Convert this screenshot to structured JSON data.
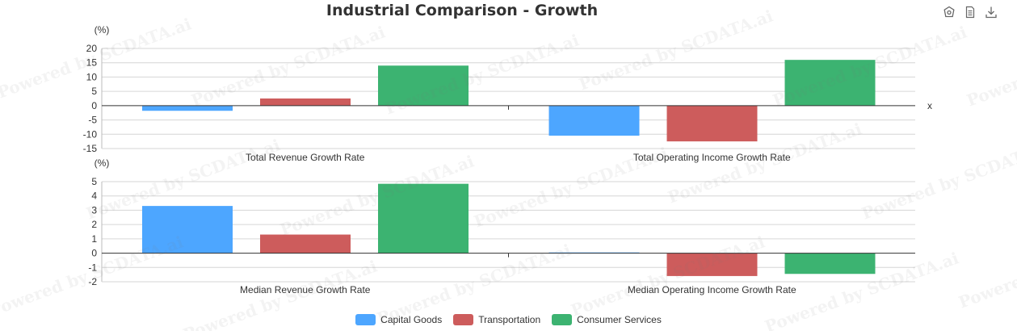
{
  "title": "Industrial Comparison - Growth",
  "toolbox": {
    "icons": [
      "palette-icon",
      "data-view-icon",
      "download-icon"
    ]
  },
  "watermark": "Powered by SCDATA.ai",
  "colors": {
    "Capital Goods": "#4da6ff",
    "Transportation": "#cd5c5c",
    "Consumer Services": "#3cb371"
  },
  "legend": [
    "Capital Goods",
    "Transportation",
    "Consumer Services"
  ],
  "chart_data": [
    {
      "type": "bar",
      "unit_label": "(%)",
      "ylim": [
        -15,
        20
      ],
      "yticks": [
        -15,
        -10,
        -5,
        0,
        5,
        10,
        15,
        20
      ],
      "x_axis_name": "x",
      "categories": [
        "Total Revenue Growth Rate",
        "Total Operating Income Growth Rate"
      ],
      "series": [
        {
          "name": "Capital Goods",
          "values": [
            -1.8,
            -10.5
          ]
        },
        {
          "name": "Transportation",
          "values": [
            2.5,
            -12.5
          ]
        },
        {
          "name": "Consumer Services",
          "values": [
            14.0,
            16.0
          ]
        }
      ],
      "grid": true,
      "legend_position": "bottom"
    },
    {
      "type": "bar",
      "unit_label": "(%)",
      "ylim": [
        -2,
        5
      ],
      "yticks": [
        -2,
        -1,
        0,
        1,
        2,
        3,
        4,
        5
      ],
      "x_axis_name": "",
      "categories": [
        "Median Revenue Growth Rate",
        "Median Operating Income Growth Rate"
      ],
      "series": [
        {
          "name": "Capital Goods",
          "values": [
            3.3,
            0.05
          ]
        },
        {
          "name": "Transportation",
          "values": [
            1.3,
            -1.6
          ]
        },
        {
          "name": "Consumer Services",
          "values": [
            4.85,
            -1.45
          ]
        }
      ],
      "grid": true,
      "legend_position": "bottom"
    }
  ]
}
